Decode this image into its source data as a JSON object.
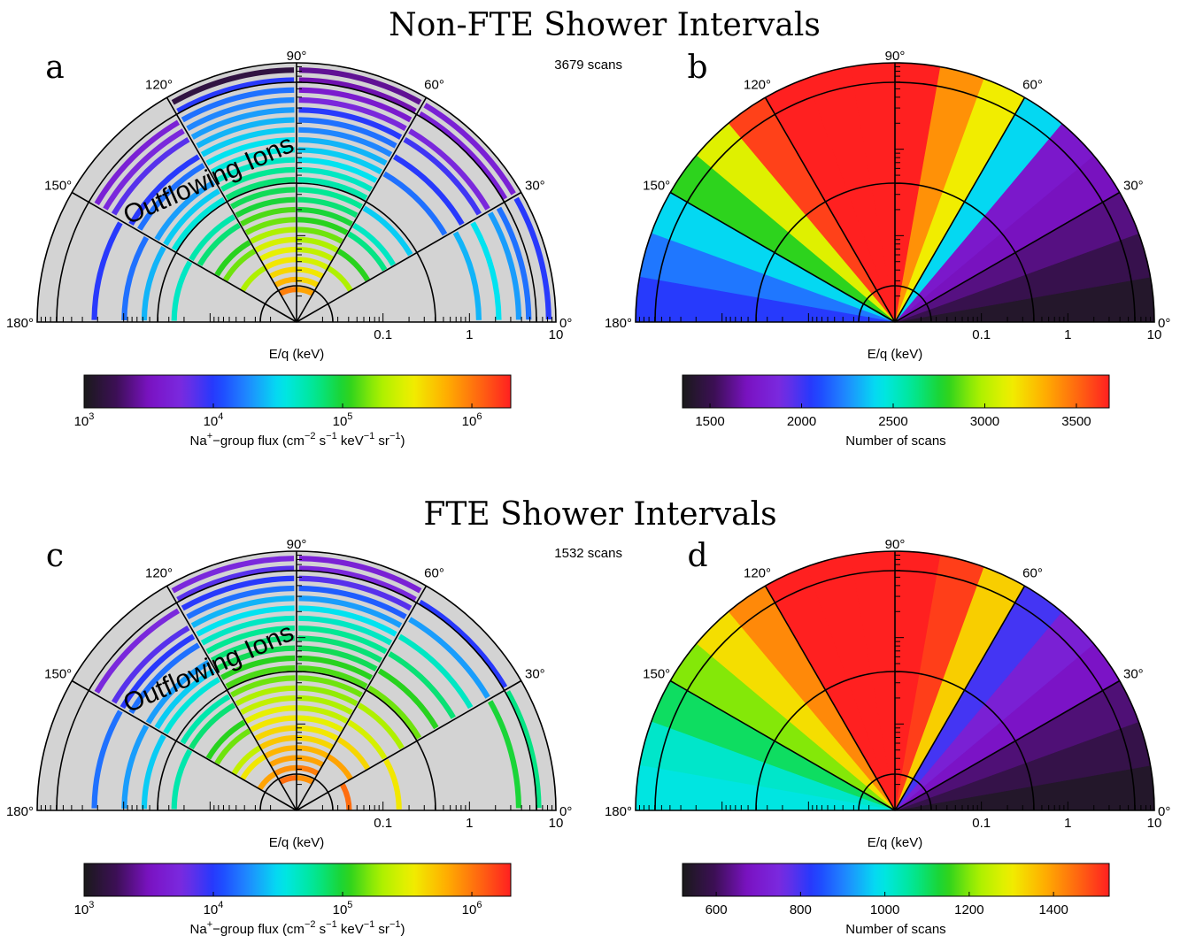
{
  "figure": {
    "rows": [
      {
        "title": "Non-FTE Shower Intervals"
      },
      {
        "title": "FTE Shower Intervals"
      }
    ]
  },
  "common": {
    "angle_labels": [
      "180°",
      "150°",
      "120°",
      "90°",
      "60°",
      "30°",
      "0°"
    ],
    "energy_ticks": [
      "0.1",
      "1",
      "10"
    ],
    "xlabel": "E/q (keV)",
    "annotation": "Outflowing Ions",
    "colormap": [
      "#1a1a1a",
      "#3d0f57",
      "#7b12c4",
      "#7a2be0",
      "#1f3bff",
      "#1f8bff",
      "#00e5f0",
      "#00e896",
      "#20d020",
      "#a8f000",
      "#f0f000",
      "#ffb000",
      "#ff6a10",
      "#ff2020"
    ]
  },
  "chart_data": [
    {
      "type": "heatmap",
      "panel": "a",
      "scans": "3679 scans",
      "radial_axis": "E/q (keV)",
      "radial_scale": "log",
      "radial_range": [
        0.01,
        10
      ],
      "angular_range": [
        0,
        180
      ],
      "colorbar": {
        "scale": "log",
        "range": [
          1000,
          2000000
        ],
        "tick_values": [
          1000,
          10000,
          100000,
          1000000
        ],
        "tick_labels": [
          {
            "base": "10",
            "exp": "3"
          },
          {
            "base": "10",
            "exp": "4"
          },
          {
            "base": "10",
            "exp": "5"
          },
          {
            "base": "10",
            "exp": "6"
          }
        ],
        "label": {
          "pre": "Na",
          "sup1": "+",
          "mid": "−group flux (cm",
          "sup2": "−2",
          "mid2": " s",
          "sup3": "−1",
          "mid3": " keV",
          "sup4": "−1",
          "mid4": " sr",
          "sup5": "−1",
          "post": ")"
        }
      },
      "sectors": [
        {
          "angle": [
            0,
            30
          ],
          "values": [
            0,
            0,
            0,
            0,
            0,
            0,
            0,
            0,
            0,
            0,
            0,
            0,
            0,
            0,
            0,
            0,
            0,
            0,
            0.42,
            0,
            0.46,
            0,
            0.4,
            0.36,
            0,
            0.3
          ]
        },
        {
          "angle": [
            30,
            60
          ],
          "values": [
            0,
            0,
            0,
            0,
            0,
            0,
            0.7,
            0,
            0.62,
            0,
            0.55,
            0.5,
            0,
            0.44,
            0,
            0,
            0,
            0.36,
            0,
            0.3,
            0,
            0.28,
            0.22,
            0,
            0.2,
            0.2
          ]
        },
        {
          "angle": [
            60,
            90
          ],
          "values": [
            0,
            0,
            0,
            0.86,
            0.8,
            0.78,
            0.74,
            0.72,
            0.7,
            0.66,
            0.62,
            0.6,
            0.56,
            0.54,
            0.52,
            0.5,
            0.46,
            0.44,
            0.42,
            0.38,
            0.36,
            0.3,
            0.22,
            0.18,
            0.14,
            0.12
          ]
        },
        {
          "angle": [
            90,
            120
          ],
          "values": [
            0,
            0,
            0,
            0.9,
            0.84,
            0.8,
            0.78,
            0.76,
            0.74,
            0.7,
            0.66,
            0.64,
            0.6,
            0.58,
            0.56,
            0.54,
            0.5,
            0.48,
            0.46,
            0.44,
            0.42,
            0.4,
            0.38,
            0.36,
            0.3,
            0.05
          ]
        },
        {
          "angle": [
            120,
            150
          ],
          "values": [
            0,
            0,
            0,
            0,
            0,
            0,
            0.7,
            0,
            0.66,
            0.62,
            0,
            0.56,
            0.52,
            0,
            0.48,
            0.44,
            0.4,
            0,
            0.36,
            0.3,
            0,
            0.26,
            0.22,
            0.2,
            0,
            0
          ]
        },
        {
          "angle": [
            150,
            180
          ],
          "values": [
            0,
            0,
            0,
            0,
            0,
            0,
            0,
            0,
            0,
            0,
            0,
            0,
            0.5,
            0,
            0,
            0.42,
            0,
            0.36,
            0,
            0,
            0.3,
            0,
            0,
            0,
            0,
            0
          ]
        }
      ]
    },
    {
      "type": "heatmap",
      "panel": "b",
      "radial_axis": "E/q (keV)",
      "radial_scale": "log",
      "radial_range": [
        0.01,
        10
      ],
      "angular_range": [
        0,
        180
      ],
      "colorbar": {
        "scale": "linear",
        "range": [
          1350,
          3679
        ],
        "tick_values": [
          1500,
          2000,
          2500,
          3000,
          3500
        ],
        "tick_labels": [
          "1500",
          "2000",
          "2500",
          "3000",
          "3500"
        ],
        "label": "Number of scans"
      },
      "wedges": [
        {
          "angle": [
            0,
            10
          ],
          "value": 1400
        },
        {
          "angle": [
            10,
            20
          ],
          "value": 1500
        },
        {
          "angle": [
            20,
            30
          ],
          "value": 1600
        },
        {
          "angle": [
            30,
            40
          ],
          "value": 1700
        },
        {
          "angle": [
            40,
            50
          ],
          "value": 1750
        },
        {
          "angle": [
            50,
            60
          ],
          "value": 2400
        },
        {
          "angle": [
            60,
            70
          ],
          "value": 3150
        },
        {
          "angle": [
            70,
            80
          ],
          "value": 3400
        },
        {
          "angle": [
            80,
            100
          ],
          "value": 3679
        },
        {
          "angle": [
            100,
            110
          ],
          "value": 3679
        },
        {
          "angle": [
            110,
            120
          ],
          "value": 3679
        },
        {
          "angle": [
            120,
            130
          ],
          "value": 3600
        },
        {
          "angle": [
            130,
            140
          ],
          "value": 3100
        },
        {
          "angle": [
            140,
            150
          ],
          "value": 2800
        },
        {
          "angle": [
            150,
            160
          ],
          "value": 2400
        },
        {
          "angle": [
            160,
            170
          ],
          "value": 2200
        },
        {
          "angle": [
            170,
            180
          ],
          "value": 2050
        }
      ]
    },
    {
      "type": "heatmap",
      "panel": "c",
      "scans": "1532 scans",
      "radial_axis": "E/q (keV)",
      "radial_scale": "log",
      "radial_range": [
        0.01,
        10
      ],
      "angular_range": [
        0,
        180
      ],
      "colorbar": {
        "scale": "log",
        "range": [
          1000,
          2000000
        ],
        "tick_values": [
          1000,
          10000,
          100000,
          1000000
        ],
        "tick_labels": [
          {
            "base": "10",
            "exp": "3"
          },
          {
            "base": "10",
            "exp": "4"
          },
          {
            "base": "10",
            "exp": "5"
          },
          {
            "base": "10",
            "exp": "6"
          }
        ],
        "label": {
          "pre": "Na",
          "sup1": "+",
          "mid": "−group flux (cm",
          "sup2": "−2",
          "mid2": " s",
          "sup3": "−1",
          "mid3": " keV",
          "sup4": "−1",
          "mid4": " sr",
          "sup5": "−1",
          "post": ")"
        }
      },
      "sectors": [
        {
          "angle": [
            0,
            30
          ],
          "values": [
            0,
            0,
            0,
            0,
            0,
            0.92,
            0,
            0,
            0,
            0,
            0.78,
            0,
            0,
            0,
            0,
            0,
            0,
            0,
            0,
            0,
            0,
            0,
            0.6,
            0,
            0.55,
            0
          ]
        },
        {
          "angle": [
            30,
            60
          ],
          "values": [
            0,
            0,
            0,
            0,
            0,
            0,
            0.86,
            0,
            0.8,
            0,
            0.74,
            0,
            0.7,
            0,
            0.66,
            0,
            0.62,
            0,
            0.56,
            0,
            0.5,
            0,
            0.4,
            0,
            0.3,
            0
          ]
        },
        {
          "angle": [
            60,
            90
          ],
          "values": [
            0,
            0,
            0,
            0.88,
            0.9,
            0.86,
            0.84,
            0.8,
            0.78,
            0.76,
            0.72,
            0.7,
            0.68,
            0.66,
            0.64,
            0.62,
            0.58,
            0.56,
            0.54,
            0.5,
            0.46,
            0.4,
            0.34,
            0.26,
            0.22,
            0.2
          ]
        },
        {
          "angle": [
            90,
            120
          ],
          "values": [
            0,
            0,
            0,
            0.92,
            0.88,
            0.86,
            0.84,
            0.82,
            0.8,
            0.78,
            0.76,
            0.72,
            0.7,
            0.66,
            0.64,
            0.62,
            0.58,
            0.56,
            0.54,
            0.5,
            0.46,
            0.42,
            0.36,
            0.3,
            0.26,
            0.22
          ]
        },
        {
          "angle": [
            120,
            150
          ],
          "values": [
            0,
            0,
            0,
            0,
            0.86,
            0,
            0.78,
            0.72,
            0,
            0.66,
            0.62,
            0,
            0.56,
            0.52,
            0,
            0.48,
            0.44,
            0.4,
            0,
            0.36,
            0.3,
            0.26,
            0,
            0.22,
            0,
            0
          ]
        },
        {
          "angle": [
            150,
            180
          ],
          "values": [
            0,
            0,
            0,
            0,
            0,
            0,
            0,
            0,
            0,
            0,
            0,
            0,
            0.52,
            0,
            0,
            0.44,
            0,
            0.4,
            0,
            0,
            0.36,
            0,
            0,
            0,
            0,
            0
          ]
        }
      ]
    },
    {
      "type": "heatmap",
      "panel": "d",
      "radial_axis": "E/q (keV)",
      "radial_scale": "log",
      "radial_range": [
        0.01,
        10
      ],
      "angular_range": [
        0,
        180
      ],
      "colorbar": {
        "scale": "linear",
        "range": [
          520,
          1532
        ],
        "tick_values": [
          600,
          800,
          1000,
          1200,
          1400
        ],
        "tick_labels": [
          "600",
          "800",
          "1000",
          "1200",
          "1400"
        ],
        "label": "Number of scans"
      },
      "wedges": [
        {
          "angle": [
            0,
            10
          ],
          "value": 540
        },
        {
          "angle": [
            10,
            20
          ],
          "value": 580
        },
        {
          "angle": [
            20,
            30
          ],
          "value": 620
        },
        {
          "angle": [
            30,
            40
          ],
          "value": 680
        },
        {
          "angle": [
            40,
            50
          ],
          "value": 720
        },
        {
          "angle": [
            50,
            60
          ],
          "value": 800
        },
        {
          "angle": [
            60,
            70
          ],
          "value": 1340
        },
        {
          "angle": [
            70,
            80
          ],
          "value": 1500
        },
        {
          "angle": [
            80,
            100
          ],
          "value": 1532
        },
        {
          "angle": [
            100,
            110
          ],
          "value": 1532
        },
        {
          "angle": [
            110,
            120
          ],
          "value": 1532
        },
        {
          "angle": [
            120,
            130
          ],
          "value": 1420
        },
        {
          "angle": [
            130,
            140
          ],
          "value": 1320
        },
        {
          "angle": [
            140,
            150
          ],
          "value": 1200
        },
        {
          "angle": [
            150,
            160
          ],
          "value": 1100
        },
        {
          "angle": [
            160,
            170
          ],
          "value": 1020
        },
        {
          "angle": [
            170,
            180
          ],
          "value": 1000
        }
      ]
    }
  ]
}
